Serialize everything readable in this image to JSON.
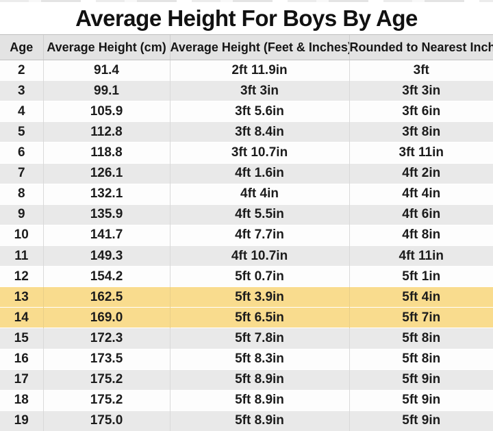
{
  "title": "Average Height For Boys By Age",
  "chart_data": {
    "type": "table",
    "title": "Average Height For Boys By Age",
    "columns": [
      "Age",
      "Average Height (cm)",
      "Average Height (Feet & Inches)",
      "Rounded to Nearest Inch"
    ],
    "rows": [
      {
        "cells": [
          "2",
          "91.4",
          "2ft 11.9in",
          "3ft"
        ],
        "highlight": false
      },
      {
        "cells": [
          "3",
          "99.1",
          "3ft 3in",
          "3ft 3in"
        ],
        "highlight": false
      },
      {
        "cells": [
          "4",
          "105.9",
          "3ft 5.6in",
          "3ft 6in"
        ],
        "highlight": false
      },
      {
        "cells": [
          "5",
          "112.8",
          "3ft 8.4in",
          "3ft 8in"
        ],
        "highlight": false
      },
      {
        "cells": [
          "6",
          "118.8",
          "3ft 10.7in",
          "3ft 11in"
        ],
        "highlight": false
      },
      {
        "cells": [
          "7",
          "126.1",
          "4ft 1.6in",
          "4ft 2in"
        ],
        "highlight": false
      },
      {
        "cells": [
          "8",
          "132.1",
          "4ft 4in",
          "4ft 4in"
        ],
        "highlight": false
      },
      {
        "cells": [
          "9",
          "135.9",
          "4ft 5.5in",
          "4ft 6in"
        ],
        "highlight": false
      },
      {
        "cells": [
          "10",
          "141.7",
          "4ft 7.7in",
          "4ft 8in"
        ],
        "highlight": false
      },
      {
        "cells": [
          "11",
          "149.3",
          "4ft 10.7in",
          "4ft 11in"
        ],
        "highlight": false
      },
      {
        "cells": [
          "12",
          "154.2",
          "5ft 0.7in",
          "5ft 1in"
        ],
        "highlight": false
      },
      {
        "cells": [
          "13",
          "162.5",
          "5ft 3.9in",
          "5ft 4in"
        ],
        "highlight": true
      },
      {
        "cells": [
          "14",
          "169.0",
          "5ft 6.5in",
          "5ft 7in"
        ],
        "highlight": true
      },
      {
        "cells": [
          "15",
          "172.3",
          "5ft 7.8in",
          "5ft 8in"
        ],
        "highlight": false
      },
      {
        "cells": [
          "16",
          "173.5",
          "5ft 8.3in",
          "5ft 8in"
        ],
        "highlight": false
      },
      {
        "cells": [
          "17",
          "175.2",
          "5ft 8.9in",
          "5ft 9in"
        ],
        "highlight": false
      },
      {
        "cells": [
          "18",
          "175.2",
          "5ft 8.9in",
          "5ft 9in"
        ],
        "highlight": false
      },
      {
        "cells": [
          "19",
          "175.0",
          "5ft 8.9in",
          "5ft 9in"
        ],
        "highlight": false
      }
    ],
    "layout": {
      "striped": true,
      "highlighted_ages": [
        "13",
        "14"
      ]
    }
  },
  "colors": {
    "highlight_row": "#f9dc8e",
    "stripe_row": "#e9e9e9",
    "header_bg": "#e3e3e3",
    "text": "#111111"
  }
}
